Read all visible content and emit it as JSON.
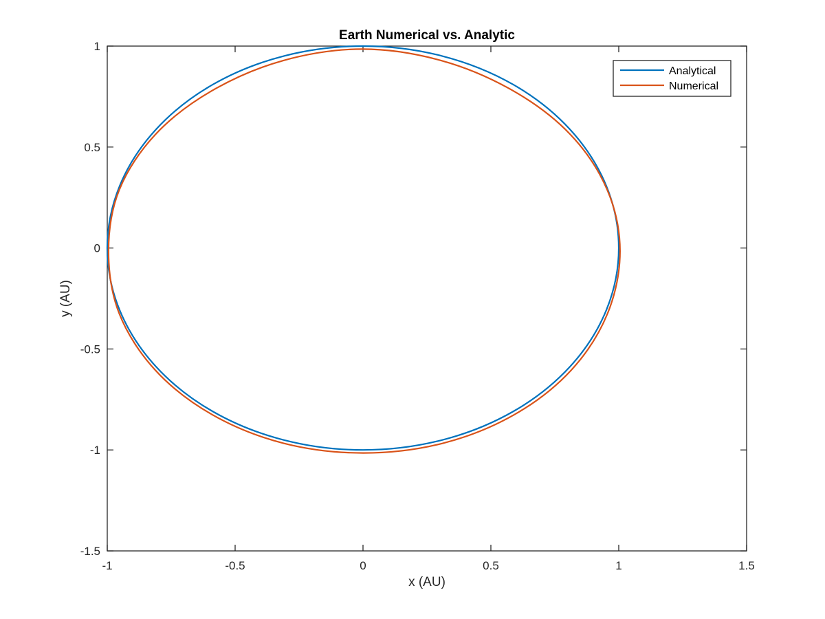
{
  "chart_data": {
    "type": "line",
    "title": "Earth Numerical vs. Analytic",
    "xlabel": "x (AU)",
    "ylabel": "y (AU)",
    "xlim": [
      -1,
      1.5
    ],
    "ylim": [
      -1.5,
      1
    ],
    "xticks": [
      -1,
      -0.5,
      0,
      0.5,
      1,
      1.5
    ],
    "yticks": [
      -1.5,
      -1,
      -0.5,
      0,
      0.5,
      1
    ],
    "xtick_labels": [
      "-1",
      "-0.5",
      "0",
      "0.5",
      "1",
      "1.5"
    ],
    "ytick_labels": [
      "-1.5",
      "-1",
      "-0.5",
      "0",
      "0.5",
      "1"
    ],
    "grid": false,
    "legend_position": "top-right",
    "series": [
      {
        "name": "Analytical",
        "color": "#0072BD",
        "x": [
          1.0,
          0.951,
          0.809,
          0.588,
          0.309,
          0.0,
          -0.309,
          -0.588,
          -0.809,
          -0.951,
          -1.0,
          -0.951,
          -0.809,
          -0.588,
          -0.309,
          0.0,
          0.309,
          0.588,
          0.809,
          0.951,
          1.0
        ],
        "y": [
          0.0,
          0.309,
          0.588,
          0.809,
          0.951,
          1.0,
          0.951,
          0.809,
          0.588,
          0.309,
          0.0,
          -0.309,
          -0.588,
          -0.809,
          -0.951,
          -1.0,
          -0.951,
          -0.809,
          -0.588,
          -0.309,
          0.0
        ]
      },
      {
        "name": "Numerical",
        "color": "#D95319",
        "x": [
          1.005,
          0.955,
          0.811,
          0.588,
          0.307,
          -0.003,
          -0.313,
          -0.592,
          -0.812,
          -0.953,
          -0.995,
          -0.953,
          -0.812,
          -0.59,
          -0.31,
          0.001,
          0.312,
          0.592,
          0.814,
          0.956,
          1.005
        ],
        "y": [
          -0.015,
          0.288,
          0.562,
          0.778,
          0.928,
          0.985,
          0.928,
          0.778,
          0.562,
          0.288,
          -0.015,
          -0.325,
          -0.605,
          -0.825,
          -0.967,
          -1.015,
          -0.967,
          -0.825,
          -0.605,
          -0.325,
          -0.015
        ]
      }
    ]
  }
}
